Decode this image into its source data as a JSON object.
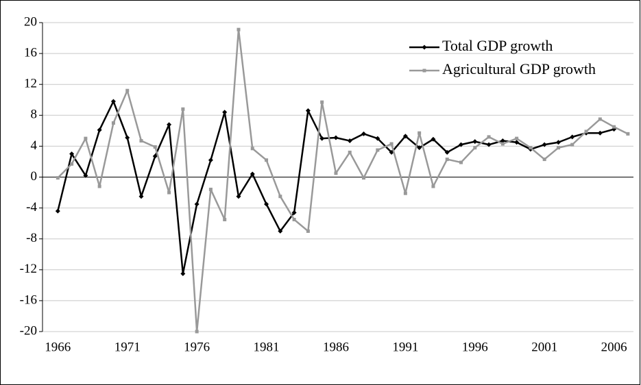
{
  "chart_data": {
    "type": "line",
    "x": [
      1966,
      1967,
      1968,
      1969,
      1970,
      1971,
      1972,
      1973,
      1974,
      1975,
      1976,
      1977,
      1978,
      1979,
      1980,
      1981,
      1982,
      1983,
      1984,
      1985,
      1986,
      1987,
      1988,
      1989,
      1990,
      1991,
      1992,
      1993,
      1994,
      1995,
      1996,
      1997,
      1998,
      1999,
      2000,
      2001,
      2002,
      2003,
      2004,
      2005,
      2006,
      2007
    ],
    "series": [
      {
        "name": "Total GDP growth",
        "color": "#000000",
        "marker": "diamond",
        "values": [
          -4.4,
          3.0,
          0.2,
          6.1,
          9.8,
          5.1,
          -2.5,
          2.7,
          6.8,
          -12.5,
          -3.5,
          2.2,
          8.4,
          -2.5,
          0.4,
          -3.5,
          -7.0,
          -4.6,
          8.6,
          5.0,
          5.1,
          4.7,
          5.6,
          5.0,
          3.2,
          5.3,
          3.8,
          4.9,
          3.2,
          4.2,
          4.6,
          4.2,
          4.7,
          4.5,
          3.6,
          4.2,
          4.5,
          5.2,
          5.7,
          5.7,
          6.2,
          null
        ]
      },
      {
        "name": "Agricultural GDP growth",
        "color": "#999999",
        "marker": "square",
        "values": [
          -0.1,
          1.7,
          5.0,
          -1.2,
          7.0,
          11.2,
          4.7,
          3.9,
          -2.0,
          8.8,
          -20.0,
          -1.6,
          -5.5,
          19.1,
          3.7,
          2.2,
          -2.5,
          -5.5,
          -7.0,
          9.7,
          0.5,
          3.2,
          -0.1,
          3.5,
          4.3,
          -2.1,
          5.7,
          -1.2,
          2.3,
          1.9,
          3.8,
          5.2,
          4.3,
          5.0,
          3.8,
          2.3,
          3.8,
          4.2,
          5.9,
          7.5,
          6.5,
          5.6
        ]
      }
    ],
    "xlim": [
      1964.9,
      2007.4
    ],
    "xticks": [
      1966,
      1971,
      1976,
      1981,
      1986,
      1991,
      1996,
      2001,
      2006
    ],
    "ylim": [
      -20,
      20
    ],
    "yticks": [
      -20,
      -16,
      -12,
      -8,
      -4,
      0,
      4,
      8,
      12,
      16,
      20
    ],
    "grid": true,
    "legend": "top-right"
  }
}
